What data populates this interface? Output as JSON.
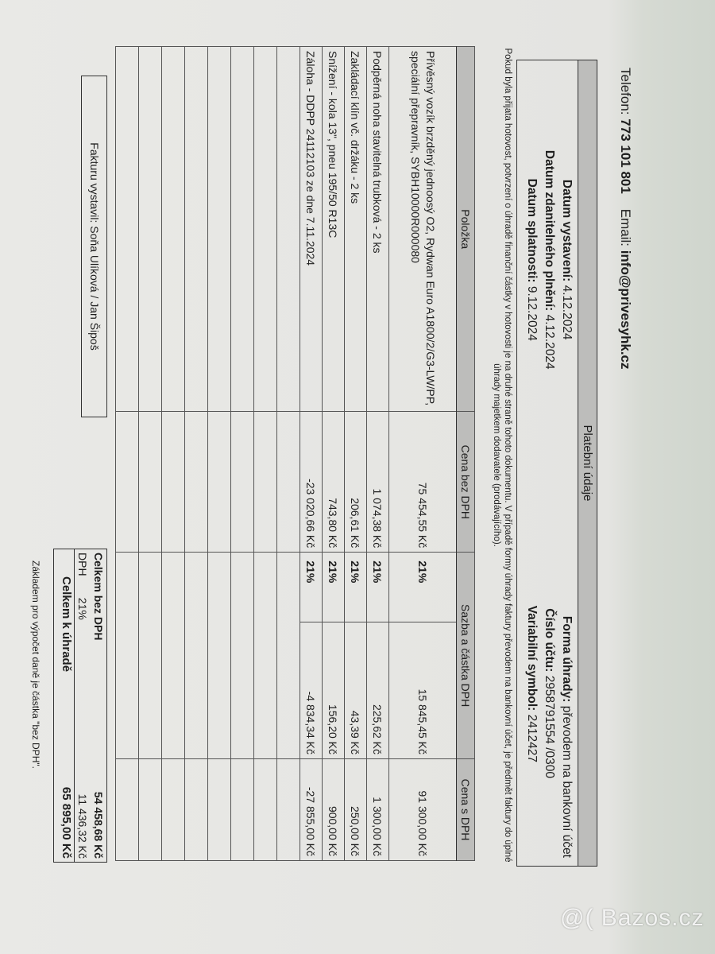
{
  "header": {
    "phone_label": "Telefon:",
    "phone": "773 101 801",
    "email_label": "Email:",
    "email": "info@privesyhk.cz"
  },
  "payment": {
    "title": "Platební údaje",
    "issue_label": "Datum vystavení:",
    "issue": "4.12.2024",
    "taxable_label": "Datum zdanitelného plnění:",
    "taxable": "4.12.2024",
    "due_label": "Datum splatnosti:",
    "due": "9.12.2024",
    "method_label": "Forma úhrady:",
    "method": "převodem na bankovní účet",
    "account_label": "Číslo účtu:",
    "account": "2958791554 /0300",
    "vs_label": "Variabilní symbol:",
    "vs": "2412427"
  },
  "note": "Pokud byla přijata hotovost, potvrzení o úhradě finanční částky v hotovosti je na druhé straně tohoto dokumentu. V případě formy úhrady faktury převodem na bankovní účet, je předmět faktury do úplné úhrady majetkem dodavatele (prodávajícího).",
  "table": {
    "headers": [
      "Položka",
      "Cena bez DPH",
      "Sazba a částka DPH",
      "Cena s DPH"
    ],
    "rows": [
      {
        "item": "Přívěsný vozík brzděný jednoosý O2, Rydwan Euro A1800/2/G3-LW/PP, speciální přepravník, SYBH10000R000080",
        "net": "75 454,55 Kč",
        "rate": "21%",
        "vat": "15 845,45 Kč",
        "gross": "91 300,00 Kč"
      },
      {
        "item": "Podpěrná noha stavitelná trubková - 2 ks",
        "net": "1 074,38 Kč",
        "rate": "21%",
        "vat": "225,62 Kč",
        "gross": "1 300,00 Kč"
      },
      {
        "item": "Zakládací klín vč. držáku - 2 ks",
        "net": "206,61 Kč",
        "rate": "21%",
        "vat": "43,39 Kč",
        "gross": "250,00 Kč"
      },
      {
        "item": "Snížení - kola 13\", pneu 195/50 R13C",
        "net": "743,80 Kč",
        "rate": "21%",
        "vat": "156,20 Kč",
        "gross": "900,00 Kč"
      },
      {
        "item": "Záloha - DDPP 24112103 ze dne 7.11.2024",
        "net": "-23 020,66 Kč",
        "rate": "21%",
        "vat": "-4 834,34 Kč",
        "gross": "-27 855,00 Kč"
      }
    ]
  },
  "issued_by": "Fakturu vystavil: Soňa Ulíková / Jan Šipoš",
  "totals": {
    "net_label": "Celkem bez DPH",
    "net": "54 458,68 Kč",
    "vat_label": "DPH",
    "vat_rate": "21%",
    "vat": "11 436,32 Kč",
    "total_label": "Celkem k úhradě",
    "total": "65 895,00 Kč"
  },
  "base_note": "Základem pro výpočet daně je částka \"bez DPH\".",
  "watermark": "@( Bazos.cz"
}
